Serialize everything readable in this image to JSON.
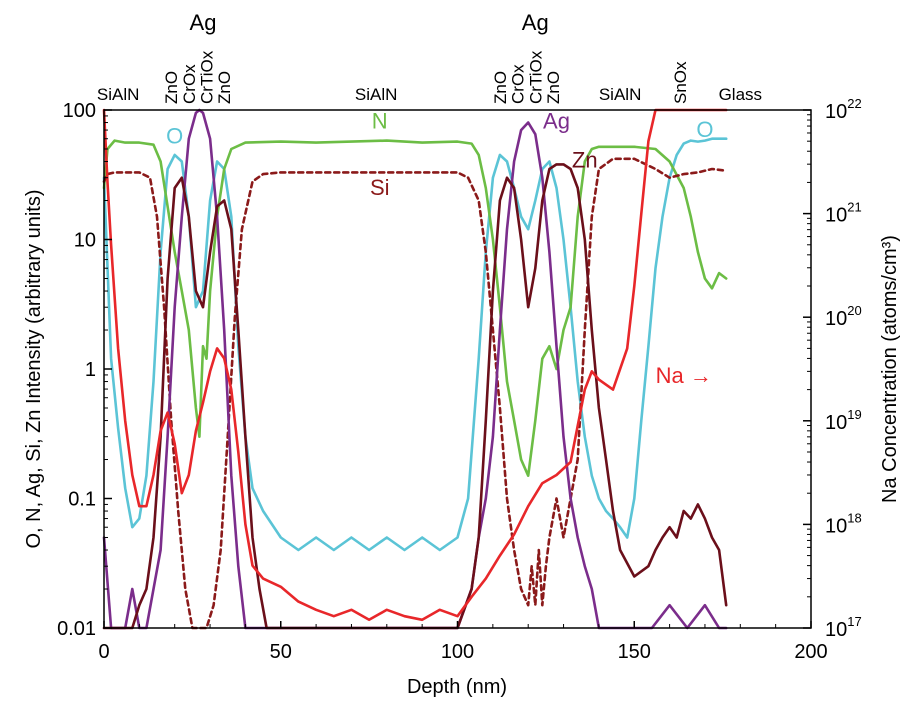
{
  "chart_data": {
    "type": "line",
    "xlabel": "Depth (nm)",
    "ylabel": "O, N, Ag, Si, Zn Intensity (arbitrary units)",
    "y2label": "Na Concentration (atoms/cm³)",
    "xlim": [
      0,
      200
    ],
    "ylim": [
      0.01,
      100
    ],
    "y2lim": [
      1e+17,
      1e+22
    ],
    "yscale": "log",
    "y2scale": "log",
    "grid": false,
    "x_ticks": [
      "0",
      "50",
      "100",
      "150",
      "200"
    ],
    "y_ticks": [
      "0.01",
      "0.1",
      "1",
      "10",
      "100"
    ],
    "y2_ticks": [
      {
        "base": "10",
        "exp": "17"
      },
      {
        "base": "10",
        "exp": "18"
      },
      {
        "base": "10",
        "exp": "19"
      },
      {
        "base": "10",
        "exp": "20"
      },
      {
        "base": "10",
        "exp": "21"
      },
      {
        "base": "10",
        "exp": "22"
      }
    ],
    "layers": [
      {
        "label": "SiAlN",
        "depth": 4,
        "vertical": false
      },
      {
        "label": "ZnO",
        "depth": 19,
        "vertical": true
      },
      {
        "label": "CrOx",
        "depth": 24,
        "vertical": true
      },
      {
        "label": "CrTiOx",
        "depth": 29,
        "vertical": true
      },
      {
        "label": "ZnO",
        "depth": 34,
        "vertical": true
      },
      {
        "label": "SiAlN",
        "depth": 77,
        "vertical": false
      },
      {
        "label": "ZnO",
        "depth": 112,
        "vertical": true
      },
      {
        "label": "CrOx",
        "depth": 117,
        "vertical": true
      },
      {
        "label": "CrTiOx",
        "depth": 122,
        "vertical": true
      },
      {
        "label": "ZnO",
        "depth": 127,
        "vertical": true
      },
      {
        "label": "SiAlN",
        "depth": 146,
        "vertical": false
      },
      {
        "label": "SnOx",
        "depth": 163,
        "vertical": true
      },
      {
        "label": "Glass",
        "depth": 180,
        "vertical": false
      }
    ],
    "top_annotations": [
      {
        "label": "Ag",
        "depth": 28
      },
      {
        "label": "Ag",
        "depth": 122
      }
    ],
    "series_labels": [
      {
        "text": "O",
        "x": 20,
        "y": 55,
        "color": "#5bc4d6"
      },
      {
        "text": "N",
        "x": 78,
        "y": 72,
        "color": "#6cbd45"
      },
      {
        "text": "Si",
        "x": 78,
        "y": 22,
        "color": "#8b1a1a"
      },
      {
        "text": "Ag",
        "x": 128,
        "y": 72,
        "color": "#7b2d8b"
      },
      {
        "text": "Zn",
        "x": 136,
        "y": 36,
        "color": "#6b0f1a"
      },
      {
        "text": "O",
        "x": 170,
        "y": 62,
        "color": "#5bc4d6"
      },
      {
        "text": "Na →",
        "x": 164,
        "y": 0.78,
        "color": "#e8272a"
      }
    ],
    "series": [
      {
        "name": "O",
        "axis": "left",
        "color": "#5bc4d6",
        "dash": false,
        "x": [
          0,
          2,
          4,
          6,
          8,
          10,
          12,
          14,
          16,
          18,
          20,
          22,
          24,
          26,
          28,
          30,
          32,
          34,
          36,
          38,
          40,
          42,
          45,
          50,
          55,
          60,
          65,
          70,
          75,
          80,
          85,
          90,
          95,
          100,
          103,
          106,
          108,
          110,
          112,
          114,
          116,
          118,
          120,
          122,
          124,
          126,
          128,
          130,
          132,
          134,
          136,
          138,
          140,
          142,
          144,
          146,
          148,
          150,
          152,
          154,
          156,
          158,
          160,
          162,
          164,
          166,
          168,
          170,
          172,
          174,
          176
        ],
        "y": [
          30,
          1.2,
          0.35,
          0.12,
          0.06,
          0.07,
          0.15,
          0.8,
          8,
          35,
          45,
          40,
          15,
          3,
          4,
          20,
          40,
          35,
          15,
          1.5,
          0.3,
          0.12,
          0.08,
          0.05,
          0.04,
          0.05,
          0.04,
          0.05,
          0.04,
          0.05,
          0.04,
          0.05,
          0.04,
          0.05,
          0.1,
          1.2,
          8,
          30,
          45,
          40,
          25,
          15,
          12,
          20,
          35,
          40,
          25,
          10,
          3,
          0.8,
          0.3,
          0.15,
          0.1,
          0.08,
          0.07,
          0.06,
          0.05,
          0.1,
          0.4,
          1.5,
          6,
          15,
          30,
          45,
          55,
          58,
          57,
          58,
          60,
          60,
          60
        ]
      },
      {
        "name": "N",
        "axis": "left",
        "color": "#6cbd45",
        "dash": false,
        "x": [
          0,
          1,
          3,
          6,
          10,
          14,
          16,
          18,
          20,
          22,
          24,
          26,
          27,
          28,
          29,
          30,
          32,
          34,
          36,
          40,
          50,
          60,
          70,
          80,
          90,
          100,
          104,
          106,
          108,
          110,
          112,
          114,
          116,
          118,
          120,
          122,
          124,
          126,
          128,
          130,
          132,
          134,
          136,
          138,
          140,
          150,
          156,
          160,
          164,
          166,
          168,
          170,
          172,
          174,
          176
        ],
        "y": [
          25,
          50,
          58,
          56,
          56,
          54,
          40,
          18,
          8,
          4,
          2,
          0.5,
          0.3,
          1.5,
          1.2,
          4,
          15,
          35,
          50,
          56,
          57,
          56,
          57,
          58,
          56,
          57,
          55,
          45,
          25,
          10,
          3,
          0.8,
          0.4,
          0.2,
          0.15,
          0.4,
          1.2,
          1.5,
          1,
          2,
          3,
          15,
          40,
          50,
          52,
          52,
          50,
          40,
          25,
          15,
          8,
          5,
          4.2,
          5.5,
          5
        ]
      },
      {
        "name": "Si",
        "axis": "left",
        "color": "#8b1a1a",
        "dash": true,
        "x": [
          0,
          1,
          3,
          6,
          10,
          13,
          15,
          17,
          19,
          21,
          23,
          25,
          27,
          29,
          31,
          33,
          35,
          37,
          39,
          42,
          45,
          50,
          60,
          70,
          80,
          90,
          100,
          103,
          106,
          108,
          110,
          112,
          114,
          116,
          118,
          120,
          121,
          122,
          123,
          124,
          125,
          126,
          128,
          130,
          132,
          134,
          136,
          138,
          140,
          144,
          150,
          156,
          160,
          164,
          168,
          172,
          176
        ],
        "y": [
          28,
          32,
          33,
          33,
          33,
          30,
          15,
          3,
          0.4,
          0.08,
          0.02,
          0.01,
          0.01,
          0.01,
          0.015,
          0.04,
          0.3,
          2.5,
          12,
          28,
          32,
          33,
          33,
          33,
          33,
          33,
          33,
          30,
          20,
          8,
          2,
          0.5,
          0.1,
          0.04,
          0.02,
          0.015,
          0.03,
          0.015,
          0.04,
          0.015,
          0.03,
          0.05,
          0.1,
          0.05,
          0.1,
          0.2,
          2,
          15,
          35,
          42,
          42,
          35,
          30,
          32,
          33,
          35,
          34
        ]
      },
      {
        "name": "Ag",
        "axis": "left",
        "color": "#7b2d8b",
        "dash": false,
        "x": [
          0,
          2,
          4,
          6,
          8,
          10,
          12,
          14,
          16,
          18,
          20,
          22,
          24,
          26,
          27,
          28,
          30,
          32,
          34,
          36,
          38,
          40,
          42,
          45,
          50,
          60,
          70,
          80,
          90,
          100,
          104,
          106,
          108,
          110,
          112,
          114,
          116,
          118,
          120,
          122,
          124,
          126,
          128,
          130,
          132,
          134,
          136,
          138,
          140,
          142,
          145,
          150,
          155,
          160,
          165,
          170,
          174,
          176
        ],
        "y": [
          0.05,
          0.01,
          0.01,
          0.01,
          0.02,
          0.01,
          0.01,
          0.02,
          0.04,
          0.3,
          3,
          15,
          60,
          95,
          100,
          95,
          60,
          15,
          2,
          0.15,
          0.03,
          0.01,
          0.01,
          0.01,
          0.01,
          0.01,
          0.01,
          0.01,
          0.01,
          0.01,
          0.02,
          0.05,
          0.1,
          0.3,
          2,
          12,
          40,
          70,
          80,
          65,
          30,
          8,
          1.5,
          0.3,
          0.1,
          0.05,
          0.03,
          0.02,
          0.01,
          0.01,
          0.01,
          0.01,
          0.01,
          0.015,
          0.01,
          0.015,
          0.01,
          0.01
        ]
      },
      {
        "name": "Zn",
        "axis": "left",
        "color": "#6b0f1a",
        "dash": false,
        "x": [
          0,
          2,
          4,
          6,
          8,
          10,
          12,
          14,
          16,
          18,
          20,
          22,
          24,
          26,
          28,
          30,
          32,
          34,
          36,
          38,
          40,
          42,
          44,
          46,
          50,
          60,
          70,
          80,
          90,
          100,
          104,
          106,
          108,
          110,
          112,
          114,
          116,
          118,
          120,
          122,
          124,
          126,
          128,
          130,
          132,
          134,
          136,
          138,
          140,
          142,
          144,
          146,
          150,
          154,
          156,
          158,
          160,
          162,
          164,
          166,
          168,
          170,
          172,
          174,
          176
        ],
        "y": [
          0.01,
          0.01,
          0.01,
          0.01,
          0.01,
          0.015,
          0.02,
          0.05,
          0.3,
          5,
          25,
          30,
          15,
          4,
          3,
          8,
          18,
          20,
          12,
          2,
          0.3,
          0.05,
          0.02,
          0.01,
          0.01,
          0.01,
          0.01,
          0.01,
          0.01,
          0.01,
          0.02,
          0.05,
          0.4,
          4,
          20,
          30,
          25,
          10,
          3,
          6,
          20,
          35,
          38,
          38,
          35,
          25,
          10,
          2,
          0.5,
          0.2,
          0.08,
          0.04,
          0.025,
          0.03,
          0.04,
          0.05,
          0.06,
          0.05,
          0.08,
          0.07,
          0.09,
          0.07,
          0.05,
          0.04,
          0.015
        ]
      },
      {
        "name": "Na",
        "axis": "right",
        "color": "#e8272a",
        "dash": false,
        "x": [
          0,
          1,
          2,
          4,
          6,
          8,
          10,
          12,
          14,
          16,
          18,
          20,
          22,
          24,
          26,
          28,
          30,
          32,
          34,
          36,
          38,
          40,
          42,
          45,
          50,
          55,
          60,
          65,
          70,
          75,
          80,
          85,
          90,
          95,
          100,
          104,
          108,
          112,
          116,
          120,
          124,
          128,
          132,
          136,
          138,
          140,
          144,
          148,
          150,
          152,
          154,
          156,
          158,
          160,
          170,
          176
        ],
        "y": [
          1e+22,
          2e+21,
          5e+20,
          5e+19,
          1e+19,
          3e+18,
          1.5e+18,
          1.5e+18,
          3e+18,
          8e+18,
          1.2e+19,
          6e+18,
          2e+18,
          3e+18,
          8e+18,
          1.5e+19,
          3e+19,
          5e+19,
          4e+19,
          2e+19,
          5e+18,
          1e+18,
          4e+17,
          3e+17,
          2.5e+17,
          1.8e+17,
          1.5e+17,
          1.3e+17,
          1.5e+17,
          1.2e+17,
          1.5e+17,
          1.3e+17,
          1.2e+17,
          1.5e+17,
          1.3e+17,
          2e+17,
          3e+17,
          5e+17,
          8e+17,
          1.5e+18,
          2.5e+18,
          3e+18,
          4e+18,
          2e+19,
          3e+19,
          2.5e+19,
          2e+19,
          5e+19,
          2e+20,
          1e+21,
          5e+21,
          1e+22,
          1e+22,
          1e+22,
          1e+22,
          1e+22
        ]
      }
    ]
  }
}
